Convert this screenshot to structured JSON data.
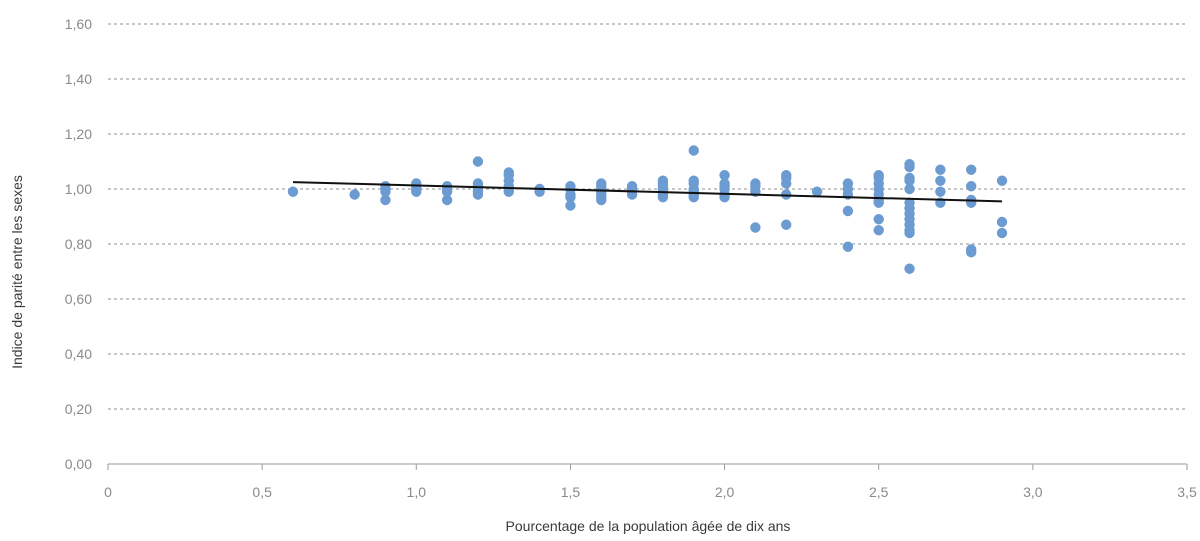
{
  "chart_data": {
    "type": "scatter",
    "title": "",
    "xlabel": "Pourcentage de la population âgée de dix ans",
    "ylabel": "Indice de parité entre les sexes",
    "xlim": [
      0,
      3.5
    ],
    "ylim": [
      0,
      1.6
    ],
    "x_ticks": [
      0,
      0.5,
      1.0,
      1.5,
      2.0,
      2.5,
      3.0,
      3.5
    ],
    "x_tick_labels": [
      "0",
      "0,5",
      "1,0",
      "1,5",
      "2,0",
      "2,5",
      "3,0",
      "3,5"
    ],
    "y_ticks": [
      0,
      0.2,
      0.4,
      0.6,
      0.8,
      1.0,
      1.2,
      1.4,
      1.6
    ],
    "y_tick_labels": [
      "0,00",
      "0,20",
      "0,40",
      "0,60",
      "0,80",
      "1,00",
      "1,20",
      "1,40",
      "1,60"
    ],
    "grid": "horizontal dashed",
    "marker_color": "#6b9bd1",
    "trendline_color": "#111111",
    "trendline": [
      [
        0.6,
        1.025
      ],
      [
        2.9,
        0.955
      ]
    ],
    "points": [
      [
        0.6,
        0.99
      ],
      [
        0.8,
        0.98
      ],
      [
        0.9,
        1.01
      ],
      [
        0.9,
        1.0
      ],
      [
        0.9,
        0.99
      ],
      [
        0.9,
        0.96
      ],
      [
        1.0,
        1.02
      ],
      [
        1.0,
        1.01
      ],
      [
        1.0,
        1.0
      ],
      [
        1.0,
        0.99
      ],
      [
        1.1,
        1.01
      ],
      [
        1.1,
        1.0
      ],
      [
        1.1,
        0.99
      ],
      [
        1.1,
        0.96
      ],
      [
        1.2,
        1.1
      ],
      [
        1.2,
        1.02
      ],
      [
        1.2,
        1.01
      ],
      [
        1.2,
        1.0
      ],
      [
        1.2,
        0.99
      ],
      [
        1.2,
        0.98
      ],
      [
        1.3,
        1.06
      ],
      [
        1.3,
        1.05
      ],
      [
        1.3,
        1.03
      ],
      [
        1.3,
        1.01
      ],
      [
        1.3,
        1.0
      ],
      [
        1.3,
        0.99
      ],
      [
        1.4,
        1.0
      ],
      [
        1.4,
        0.99
      ],
      [
        1.5,
        1.01
      ],
      [
        1.5,
        1.0
      ],
      [
        1.5,
        0.98
      ],
      [
        1.5,
        0.97
      ],
      [
        1.5,
        0.94
      ],
      [
        1.6,
        1.02
      ],
      [
        1.6,
        1.01
      ],
      [
        1.6,
        1.0
      ],
      [
        1.6,
        0.99
      ],
      [
        1.6,
        0.98
      ],
      [
        1.6,
        0.97
      ],
      [
        1.6,
        0.96
      ],
      [
        1.7,
        1.01
      ],
      [
        1.7,
        1.0
      ],
      [
        1.7,
        0.99
      ],
      [
        1.7,
        0.98
      ],
      [
        1.8,
        1.03
      ],
      [
        1.8,
        1.02
      ],
      [
        1.8,
        1.01
      ],
      [
        1.8,
        1.0
      ],
      [
        1.8,
        0.99
      ],
      [
        1.8,
        0.98
      ],
      [
        1.8,
        0.97
      ],
      [
        1.9,
        1.14
      ],
      [
        1.9,
        1.03
      ],
      [
        1.9,
        1.02
      ],
      [
        1.9,
        1.0
      ],
      [
        1.9,
        0.99
      ],
      [
        1.9,
        0.98
      ],
      [
        1.9,
        0.97
      ],
      [
        2.0,
        1.05
      ],
      [
        2.0,
        1.02
      ],
      [
        2.0,
        1.01
      ],
      [
        2.0,
        1.0
      ],
      [
        2.0,
        0.98
      ],
      [
        2.0,
        0.97
      ],
      [
        2.1,
        1.02
      ],
      [
        2.1,
        1.01
      ],
      [
        2.1,
        0.99
      ],
      [
        2.1,
        0.86
      ],
      [
        2.2,
        1.05
      ],
      [
        2.2,
        1.04
      ],
      [
        2.2,
        1.02
      ],
      [
        2.2,
        0.98
      ],
      [
        2.2,
        0.87
      ],
      [
        2.3,
        0.99
      ],
      [
        2.4,
        1.02
      ],
      [
        2.4,
        1.0
      ],
      [
        2.4,
        0.98
      ],
      [
        2.4,
        0.92
      ],
      [
        2.4,
        0.79
      ],
      [
        2.5,
        1.05
      ],
      [
        2.5,
        1.04
      ],
      [
        2.5,
        1.02
      ],
      [
        2.5,
        1.0
      ],
      [
        2.5,
        0.98
      ],
      [
        2.5,
        0.96
      ],
      [
        2.5,
        0.95
      ],
      [
        2.5,
        0.89
      ],
      [
        2.5,
        0.85
      ],
      [
        2.6,
        1.09
      ],
      [
        2.6,
        1.08
      ],
      [
        2.6,
        1.04
      ],
      [
        2.6,
        1.03
      ],
      [
        2.6,
        1.0
      ],
      [
        2.6,
        0.95
      ],
      [
        2.6,
        0.93
      ],
      [
        2.6,
        0.91
      ],
      [
        2.6,
        0.89
      ],
      [
        2.6,
        0.87
      ],
      [
        2.6,
        0.85
      ],
      [
        2.6,
        0.84
      ],
      [
        2.6,
        0.71
      ],
      [
        2.7,
        1.07
      ],
      [
        2.7,
        1.03
      ],
      [
        2.7,
        0.99
      ],
      [
        2.7,
        0.95
      ],
      [
        2.8,
        1.07
      ],
      [
        2.8,
        1.01
      ],
      [
        2.8,
        0.96
      ],
      [
        2.8,
        0.95
      ],
      [
        2.8,
        0.78
      ],
      [
        2.8,
        0.77
      ],
      [
        2.9,
        1.03
      ],
      [
        2.9,
        0.88
      ],
      [
        2.9,
        0.84
      ]
    ]
  }
}
